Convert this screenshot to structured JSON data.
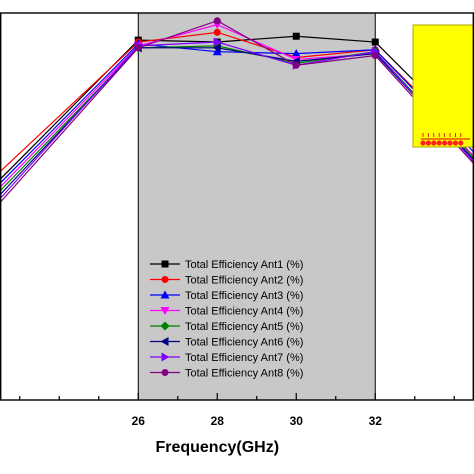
{
  "chart_data": {
    "type": "line",
    "title": "",
    "xlabel": "Frequency(GHz)",
    "ylabel": "",
    "xlim": [
      22.5,
      34.5
    ],
    "ylim": [
      0,
      100
    ],
    "x_ticks": [
      26,
      28,
      30,
      32
    ],
    "x_tick_labels": [
      "26",
      "28",
      "30",
      "32"
    ],
    "grid": false,
    "legend_position": "bottom-center",
    "shaded_band": {
      "x_start": 26,
      "x_end": 32,
      "color": "#c8c8c8"
    },
    "inset_marker": {
      "fill": "#ffff00",
      "border": "#aaaa00",
      "element_color": "#ff2020",
      "element_count": 8
    },
    "x": [
      22.5,
      26,
      28,
      30,
      32,
      34.5
    ],
    "series": [
      {
        "name": "Total Efficiency Ant1 (%)",
        "color": "#000000",
        "marker": "square",
        "values": [
          57,
          93,
          92.5,
          94,
          92.5,
          67
        ]
      },
      {
        "name": "Total Efficiency Ant2 (%)",
        "color": "#ff0000",
        "marker": "circle",
        "values": [
          59,
          92.5,
          95,
          88.5,
          90.5,
          65
        ]
      },
      {
        "name": "Total Efficiency Ant3 (%)",
        "color": "#0000ff",
        "marker": "triangle-up",
        "values": [
          56,
          92,
          90,
          89.5,
          90.5,
          64
        ]
      },
      {
        "name": "Total Efficiency Ant4 (%)",
        "color": "#ff00ff",
        "marker": "triangle-down",
        "values": [
          55,
          91.5,
          97,
          88,
          89.5,
          63
        ]
      },
      {
        "name": "Total Efficiency Ant5 (%)",
        "color": "#008000",
        "marker": "diamond",
        "values": [
          54,
          91,
          91.5,
          87,
          90,
          62.5
        ]
      },
      {
        "name": "Total Efficiency Ant6 (%)",
        "color": "#000080",
        "marker": "triangle-left",
        "values": [
          53,
          91,
          91,
          87.5,
          89.5,
          62
        ]
      },
      {
        "name": "Total Efficiency Ant7 (%)",
        "color": "#8000ff",
        "marker": "triangle-right",
        "values": [
          52,
          91.5,
          92.5,
          86.5,
          90,
          61.5
        ]
      },
      {
        "name": "Total Efficiency Ant8 (%)",
        "color": "#800080",
        "marker": "circle",
        "values": [
          51,
          91,
          98,
          86.5,
          89,
          61
        ]
      }
    ]
  }
}
